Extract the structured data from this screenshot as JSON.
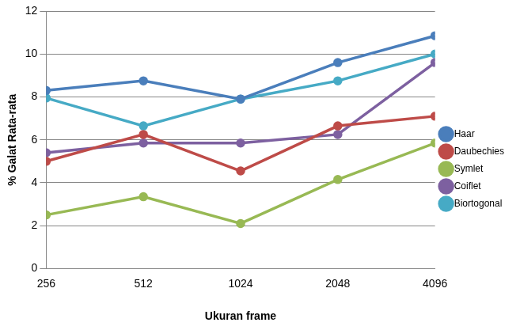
{
  "chart_data": {
    "type": "line",
    "x_label": "Ukuran frame",
    "y_label": "% Galat Rata-rata",
    "categories": [
      "256",
      "512",
      "1024",
      "2048",
      "4096"
    ],
    "series": [
      {
        "name": "Haar",
        "color": "#4a7ebb",
        "values": [
          8.3,
          8.75,
          7.9,
          9.6,
          10.85
        ]
      },
      {
        "name": "Daubechies",
        "color": "#be4b48",
        "values": [
          5.0,
          6.25,
          4.55,
          6.65,
          7.1
        ]
      },
      {
        "name": "Symlet",
        "color": "#98b954",
        "values": [
          2.5,
          3.35,
          2.1,
          4.15,
          5.85
        ]
      },
      {
        "name": "Coiflet",
        "color": "#7d60a0",
        "values": [
          5.4,
          5.85,
          5.85,
          6.25,
          9.6
        ]
      },
      {
        "name": "Biortogonal",
        "color": "#46aac5",
        "values": [
          7.95,
          6.65,
          7.9,
          8.75,
          10.0
        ]
      }
    ],
    "ylim": [
      0,
      12
    ],
    "yticks": [
      0,
      2,
      4,
      6,
      8,
      10,
      12
    ],
    "grid": true,
    "legend": "right",
    "marker": "circle"
  }
}
